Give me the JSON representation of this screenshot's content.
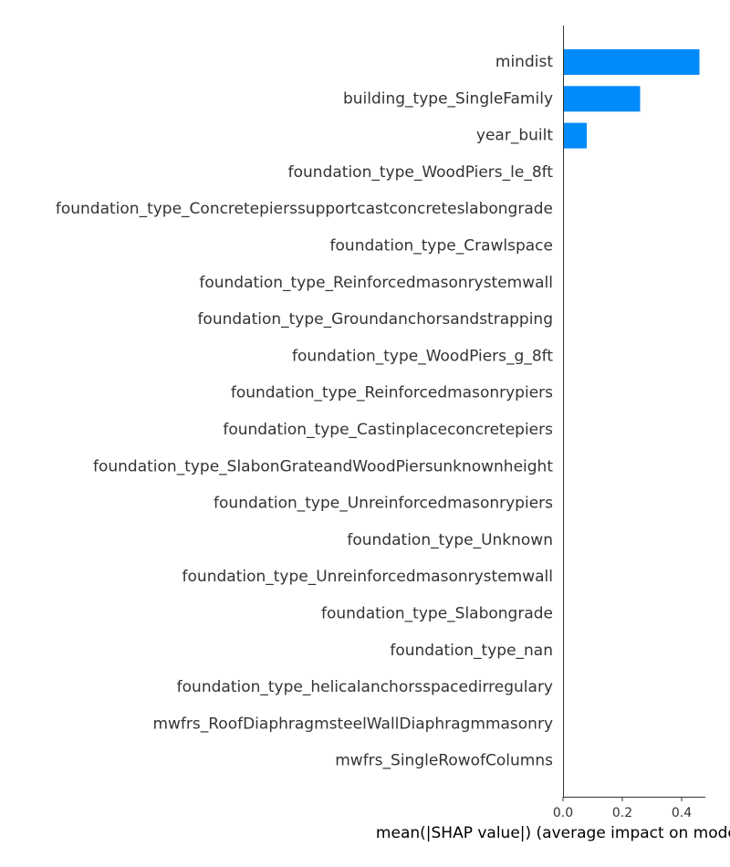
{
  "chart_data": {
    "type": "bar",
    "orientation": "horizontal",
    "xlabel": "mean(|SHAP value|) (average impact on model output magnitude)",
    "ylabel": "",
    "xlim": [
      0,
      0.48
    ],
    "xticks": [
      0.0,
      0.2,
      0.4
    ],
    "xtick_labels": [
      "0.0",
      "0.2",
      "0.4"
    ],
    "bar_color": "#008bfb",
    "grid": false,
    "categories": [
      "mindist",
      "building_type_SingleFamily",
      "year_built",
      "foundation_type_WoodPiers_le_8ft",
      "foundation_type_Concretepierssupportcastconcreteslabongrade",
      "foundation_type_Crawlspace",
      "foundation_type_Reinforcedmasonrystemwall",
      "foundation_type_Groundanchorsandstrapping",
      "foundation_type_WoodPiers_g_8ft",
      "foundation_type_Reinforcedmasonrypiers",
      "foundation_type_Castinplaceconcretepiers",
      "foundation_type_SlabonGrateandWoodPiersunknownheight",
      "foundation_type_Unreinforcedmasonrypiers",
      "foundation_type_Unknown",
      "foundation_type_Unreinforcedmasonrystemwall",
      "foundation_type_Slabongrade",
      "foundation_type_nan",
      "foundation_type_helicalanchorsspacedirregulary",
      "mwfrs_RoofDiaphragmsteelWallDiaphragmmasonry",
      "mwfrs_SingleRowofColumns"
    ],
    "values": [
      0.46,
      0.26,
      0.08,
      0,
      0,
      0,
      0,
      0,
      0,
      0,
      0,
      0,
      0,
      0,
      0,
      0,
      0,
      0,
      0,
      0
    ]
  }
}
